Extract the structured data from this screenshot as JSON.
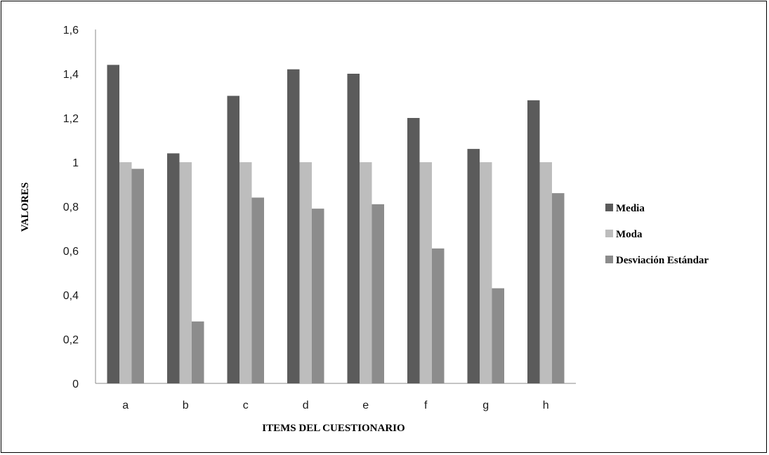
{
  "chart_data": {
    "type": "bar",
    "categories": [
      "a",
      "b",
      "c",
      "d",
      "e",
      "f",
      "g",
      "h"
    ],
    "series": [
      {
        "name": "Media",
        "color": "#5b5b5b",
        "values": [
          1.44,
          1.04,
          1.3,
          1.42,
          1.4,
          1.2,
          1.06,
          1.28
        ]
      },
      {
        "name": "Moda",
        "color": "#bdbdbd",
        "values": [
          1,
          1,
          1,
          1,
          1,
          1,
          1,
          1
        ]
      },
      {
        "name": "Desviación Estándar",
        "color": "#8c8c8c",
        "values": [
          0.97,
          0.28,
          0.84,
          0.79,
          0.81,
          0.61,
          0.43,
          0.86
        ]
      }
    ],
    "xlabel": "ITEMS DEL CUESTIONARIO",
    "ylabel": "VALORES",
    "ylim": [
      0,
      1.6
    ],
    "yticks": [
      "0",
      "0,2",
      "0,4",
      "0,6",
      "0,8",
      "1",
      "1,2",
      "1,4",
      "1,6"
    ],
    "grid": false,
    "legend_position": "right"
  }
}
